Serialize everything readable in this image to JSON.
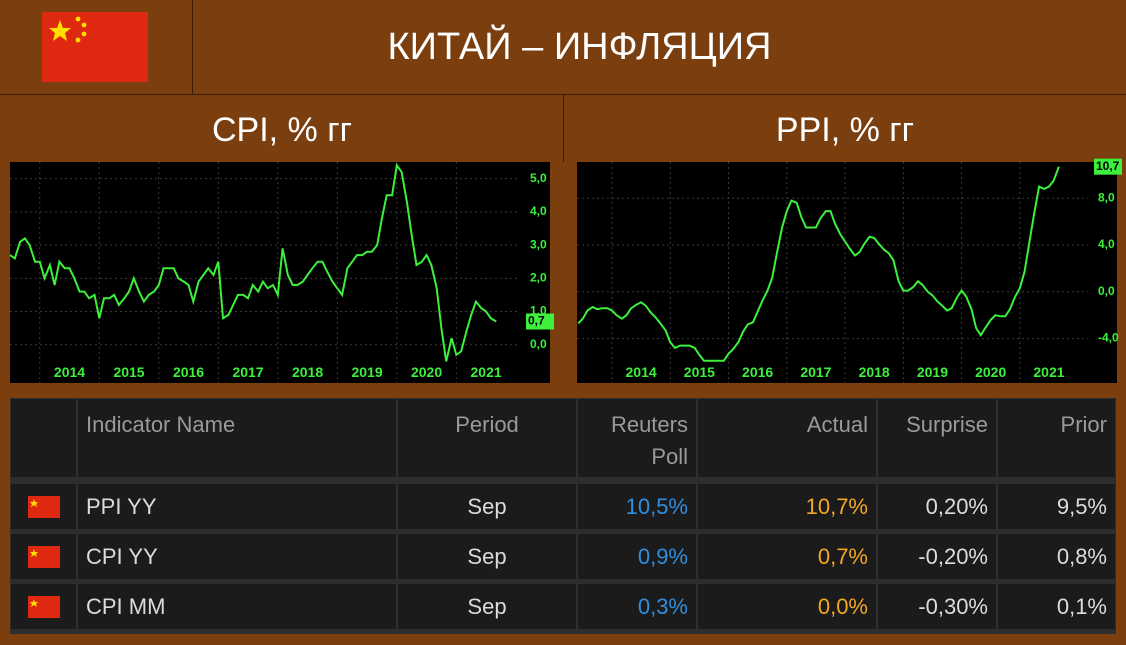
{
  "header": {
    "title": "КИТАЙ – ИНФЛЯЦИЯ"
  },
  "chart_data": [
    {
      "type": "line",
      "title": "CPI, % гг",
      "color": "#3cf03c",
      "grid": true,
      "xlim": [
        2013.5,
        2022.07
      ],
      "ylim": [
        -1.15,
        5.5
      ],
      "xticks": [
        2014,
        2015,
        2016,
        2017,
        2018,
        2019,
        2020,
        2021
      ],
      "yticks": [
        {
          "value": 0,
          "label": "0,0"
        },
        {
          "value": 1,
          "label": "1,0"
        },
        {
          "value": 2,
          "label": "2,0"
        },
        {
          "value": 3,
          "label": "3,0"
        },
        {
          "value": 4,
          "label": "4,0"
        },
        {
          "value": 5,
          "label": "5,0"
        }
      ],
      "current_value": {
        "value": 0.7,
        "label": "0,7"
      },
      "x": [
        2013.5,
        2013.58,
        2013.67,
        2013.75,
        2013.83,
        2013.92,
        2014,
        2014.08,
        2014.17,
        2014.25,
        2014.33,
        2014.42,
        2014.5,
        2014.58,
        2014.67,
        2014.75,
        2014.83,
        2014.92,
        2015,
        2015.08,
        2015.17,
        2015.25,
        2015.33,
        2015.42,
        2015.5,
        2015.58,
        2015.67,
        2015.75,
        2015.83,
        2015.92,
        2016,
        2016.08,
        2016.17,
        2016.25,
        2016.33,
        2016.42,
        2016.5,
        2016.58,
        2016.67,
        2016.75,
        2016.83,
        2016.92,
        2017,
        2017.08,
        2017.17,
        2017.25,
        2017.33,
        2017.42,
        2017.5,
        2017.58,
        2017.67,
        2017.75,
        2017.83,
        2017.92,
        2018,
        2018.08,
        2018.17,
        2018.25,
        2018.33,
        2018.42,
        2018.5,
        2018.58,
        2018.67,
        2018.75,
        2018.83,
        2018.92,
        2019,
        2019.08,
        2019.17,
        2019.25,
        2019.33,
        2019.42,
        2019.5,
        2019.58,
        2019.67,
        2019.75,
        2019.83,
        2019.92,
        2020,
        2020.08,
        2020.17,
        2020.25,
        2020.33,
        2020.42,
        2020.5,
        2020.58,
        2020.67,
        2020.75,
        2020.83,
        2020.92,
        2021,
        2021.08,
        2021.17,
        2021.25,
        2021.33,
        2021.42,
        2021.5,
        2021.58,
        2021.67
      ],
      "values": [
        2.7,
        2.6,
        3.1,
        3.2,
        3.0,
        2.5,
        2.5,
        2.0,
        2.4,
        1.8,
        2.5,
        2.3,
        2.3,
        2.0,
        1.6,
        1.6,
        1.4,
        1.5,
        0.8,
        1.4,
        1.4,
        1.5,
        1.2,
        1.4,
        1.6,
        2.0,
        1.6,
        1.3,
        1.5,
        1.6,
        1.8,
        2.3,
        2.3,
        2.3,
        2.0,
        1.9,
        1.8,
        1.3,
        1.9,
        2.1,
        2.3,
        2.1,
        2.5,
        0.8,
        0.9,
        1.2,
        1.5,
        1.5,
        1.4,
        1.8,
        1.6,
        1.9,
        1.7,
        1.8,
        1.5,
        2.9,
        2.1,
        1.8,
        1.8,
        1.9,
        2.1,
        2.3,
        2.5,
        2.5,
        2.2,
        1.9,
        1.7,
        1.5,
        2.3,
        2.5,
        2.7,
        2.7,
        2.8,
        2.8,
        3.0,
        3.8,
        4.5,
        4.5,
        5.4,
        5.2,
        4.3,
        3.3,
        2.4,
        2.5,
        2.7,
        2.4,
        1.7,
        0.5,
        -0.5,
        0.2,
        -0.3,
        -0.2,
        0.4,
        0.9,
        1.3,
        1.1,
        1.0,
        0.8,
        0.7
      ]
    },
    {
      "type": "line",
      "title": "PPI, % гг",
      "color": "#3cf03c",
      "grid": true,
      "xlim": [
        2013.4,
        2022.17
      ],
      "ylim": [
        -7.8,
        11.1
      ],
      "xticks": [
        2014,
        2015,
        2016,
        2017,
        2018,
        2019,
        2020,
        2021
      ],
      "yticks": [
        {
          "value": -4,
          "label": "-4,0"
        },
        {
          "value": 0,
          "label": "0,0"
        },
        {
          "value": 4,
          "label": "4,0"
        },
        {
          "value": 8,
          "label": "8,0"
        }
      ],
      "current_value": {
        "value": 10.7,
        "label": "10,7"
      },
      "x": [
        2013.42,
        2013.5,
        2013.58,
        2013.67,
        2013.75,
        2013.83,
        2013.92,
        2014,
        2014.08,
        2014.17,
        2014.25,
        2014.33,
        2014.42,
        2014.5,
        2014.58,
        2014.67,
        2014.75,
        2014.83,
        2014.92,
        2015,
        2015.08,
        2015.17,
        2015.25,
        2015.33,
        2015.42,
        2015.5,
        2015.58,
        2015.67,
        2015.75,
        2015.83,
        2015.92,
        2016,
        2016.08,
        2016.17,
        2016.25,
        2016.33,
        2016.42,
        2016.5,
        2016.58,
        2016.67,
        2016.75,
        2016.83,
        2016.92,
        2017,
        2017.08,
        2017.17,
        2017.25,
        2017.33,
        2017.42,
        2017.5,
        2017.58,
        2017.67,
        2017.75,
        2017.83,
        2017.92,
        2018,
        2018.08,
        2018.17,
        2018.25,
        2018.33,
        2018.42,
        2018.5,
        2018.58,
        2018.67,
        2018.75,
        2018.83,
        2018.92,
        2019,
        2019.08,
        2019.17,
        2019.25,
        2019.33,
        2019.42,
        2019.5,
        2019.58,
        2019.67,
        2019.75,
        2019.83,
        2019.92,
        2020,
        2020.08,
        2020.17,
        2020.25,
        2020.33,
        2020.42,
        2020.5,
        2020.58,
        2020.67,
        2020.75,
        2020.83,
        2020.92,
        2021,
        2021.08,
        2021.17,
        2021.25,
        2021.33,
        2021.42,
        2021.5,
        2021.58,
        2021.67
      ],
      "values": [
        -2.7,
        -2.3,
        -1.6,
        -1.3,
        -1.5,
        -1.4,
        -1.4,
        -1.6,
        -2.0,
        -2.3,
        -2.0,
        -1.4,
        -1.1,
        -0.9,
        -1.2,
        -1.8,
        -2.2,
        -2.7,
        -3.3,
        -4.3,
        -4.8,
        -4.6,
        -4.6,
        -4.6,
        -4.8,
        -5.4,
        -5.9,
        -5.9,
        -5.9,
        -5.9,
        -5.9,
        -5.3,
        -4.9,
        -4.3,
        -3.4,
        -2.8,
        -2.6,
        -1.7,
        -0.8,
        0.1,
        1.2,
        3.3,
        5.5,
        6.9,
        7.8,
        7.6,
        6.4,
        5.5,
        5.5,
        5.5,
        6.3,
        6.9,
        6.9,
        5.8,
        4.9,
        4.3,
        3.7,
        3.1,
        3.4,
        4.1,
        4.7,
        4.6,
        4.1,
        3.6,
        3.3,
        2.7,
        0.9,
        0.1,
        0.1,
        0.4,
        0.9,
        0.6,
        0.0,
        -0.3,
        -0.8,
        -1.2,
        -1.6,
        -1.4,
        -0.5,
        0.1,
        -0.4,
        -1.5,
        -3.1,
        -3.7,
        -3.0,
        -2.4,
        -2.0,
        -2.1,
        -2.1,
        -1.5,
        -0.4,
        0.3,
        1.7,
        4.4,
        6.8,
        9.0,
        8.8,
        9.0,
        9.5,
        10.7
      ]
    }
  ],
  "table": {
    "columns": [
      "Indicator Name",
      "Period",
      "Reuters Poll",
      "Actual",
      "Surprise",
      "Prior"
    ],
    "rows": [
      [
        "PPI YY",
        "Sep",
        "10,5%",
        "10,7%",
        "0,20%",
        "9,5%"
      ],
      [
        "CPI YY",
        "Sep",
        "0,9%",
        "0,7%",
        "-0,20%",
        "0,8%"
      ],
      [
        "CPI MM",
        "Sep",
        "0,3%",
        "0,0%",
        "-0,30%",
        "0,1%"
      ]
    ]
  }
}
